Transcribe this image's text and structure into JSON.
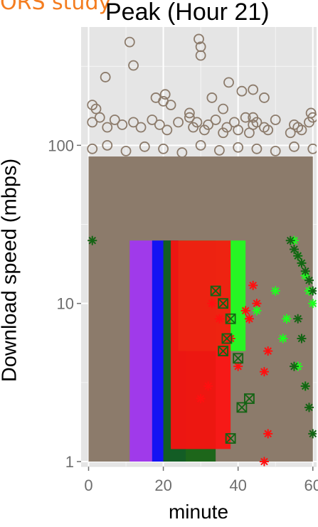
{
  "banner_text": "ORS study",
  "chart_data": {
    "type": "scatter",
    "title": "Peak (Hour 21)",
    "xlabel": "minute",
    "ylabel": "Download speed (mbps)",
    "y_scale": "log10",
    "xlim": [
      -2,
      61
    ],
    "ylim": [
      0.93,
      560
    ],
    "x_ticks": [
      0,
      20,
      40,
      60
    ],
    "x_tick_labels": [
      "0",
      "20",
      "40",
      "60"
    ],
    "y_ticks": [
      1,
      10,
      100
    ],
    "y_tick_labels": [
      "1",
      "10",
      "100"
    ],
    "grid": true,
    "legend": "none",
    "colors": {
      "panel": "#e5e5e5",
      "grid": "#ffffff",
      "taupe": "#8c7b6b",
      "purple": "#a234f5",
      "blue": "#0a0aff",
      "darkgreen": "#146414",
      "green": "#1eff1e",
      "red": "#ff1010"
    },
    "dense_bands": [
      {
        "color": "taupe",
        "x": [
          0,
          60
        ],
        "y": [
          1,
          85
        ]
      },
      {
        "color": "purple",
        "x": [
          11,
          17
        ],
        "y": [
          1,
          25
        ]
      },
      {
        "color": "blue",
        "x": [
          17,
          26
        ],
        "y": [
          1,
          25
        ]
      },
      {
        "color": "darkgreen",
        "x": [
          20,
          34
        ],
        "y": [
          1,
          25
        ]
      },
      {
        "color": "green",
        "x": [
          24,
          42
        ],
        "y": [
          5,
          25
        ]
      },
      {
        "color": "red",
        "x": [
          22,
          38
        ],
        "y": [
          1.2,
          25
        ]
      }
    ],
    "series": [
      {
        "color": "taupe",
        "marker": "circle-open",
        "x": [
          11,
          29.5,
          30,
          12,
          30,
          37.5,
          4.5,
          41,
          44,
          1,
          2,
          33,
          47,
          59.5,
          18,
          20,
          20.5,
          22,
          27,
          36,
          44,
          1,
          3,
          5,
          7,
          9,
          12,
          14,
          17,
          19,
          21,
          24,
          27,
          28,
          29,
          31,
          32,
          34,
          36,
          37,
          39,
          40,
          42,
          43,
          44,
          45,
          47,
          48,
          50,
          54,
          55,
          56,
          57,
          59,
          60,
          1,
          5,
          10,
          15,
          20,
          25,
          30,
          35,
          40,
          45,
          50,
          55,
          60
        ],
        "y": [
          450,
          470,
          420,
          320,
          370,
          250,
          270,
          220,
          225,
          180,
          170,
          200,
          200,
          160,
          200,
          190,
          210,
          180,
          160,
          170,
          150,
          140,
          150,
          130,
          145,
          135,
          140,
          130,
          145,
          135,
          125,
          140,
          150,
          130,
          140,
          125,
          135,
          145,
          120,
          130,
          140,
          125,
          150,
          120,
          135,
          140,
          130,
          125,
          145,
          120,
          135,
          130,
          125,
          140,
          150,
          95,
          100,
          92,
          98,
          95,
          90,
          100,
          93,
          97,
          95,
          92,
          98,
          95
        ]
      },
      {
        "color": "red",
        "marker": "asterisk",
        "x": [
          44,
          45,
          42,
          43,
          48,
          47,
          48,
          47,
          33,
          35,
          38,
          40,
          30,
          32
        ],
        "y": [
          13,
          10,
          9,
          8,
          5,
          3.7,
          1.5,
          1,
          10,
          8,
          6,
          4,
          2.5,
          3
        ],
        "marker_y_base": 1
      },
      {
        "color": "green",
        "marker": "asterisk",
        "x": [
          55,
          56,
          57,
          58,
          59,
          60,
          53,
          52,
          56,
          58,
          50,
          45
        ],
        "y": [
          25,
          20,
          18,
          15,
          12,
          10,
          8,
          6,
          4,
          3,
          12,
          9
        ],
        "marker_y_base": 1
      },
      {
        "color": "darkgreen",
        "marker": "asterisk",
        "x": [
          1,
          54,
          55,
          56,
          57,
          58,
          59,
          60,
          56,
          57,
          58,
          59,
          60,
          55
        ],
        "y": [
          25,
          25,
          22,
          20,
          18,
          16,
          14,
          12,
          8,
          6,
          3,
          2.2,
          1.5,
          4
        ],
        "marker_y_base": 1
      },
      {
        "color": "darkgreen",
        "marker": "square-x",
        "x": [
          36,
          38,
          37,
          40,
          41,
          43,
          34,
          36,
          38
        ],
        "y": [
          10,
          8,
          6,
          4.5,
          2.2,
          2.5,
          12,
          5,
          1.4
        ],
        "marker_y_base": 1
      }
    ]
  }
}
